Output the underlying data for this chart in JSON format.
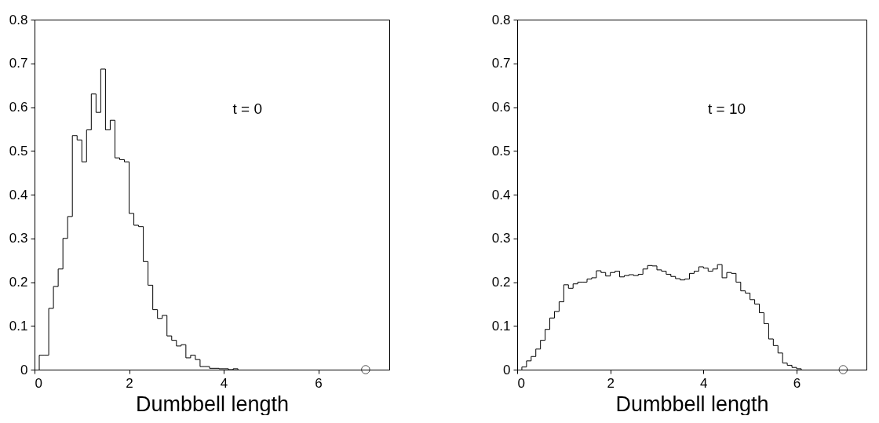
{
  "chart_data": [
    {
      "type": "histogram",
      "xlabel": "Dumbbell length",
      "annotations": [
        "t = 0"
      ],
      "bins": [
        0.1,
        0.2,
        0.3,
        0.4,
        0.5,
        0.6,
        0.7,
        0.8,
        0.9,
        1.0,
        1.1,
        1.2,
        1.3,
        1.4,
        1.5,
        1.6,
        1.7,
        1.8,
        1.9,
        2.0,
        2.1,
        2.2,
        2.3,
        2.4,
        2.5,
        2.6,
        2.7,
        2.8,
        2.9,
        3.0,
        3.1,
        3.2,
        3.3,
        3.4,
        3.5,
        3.6,
        3.7,
        3.8,
        3.9,
        4.0,
        4.1,
        4.2,
        4.3
      ],
      "values": [
        0.033,
        0.033,
        0.14,
        0.19,
        0.23,
        0.3,
        0.35,
        0.535,
        0.525,
        0.475,
        0.548,
        0.63,
        0.588,
        0.687,
        0.548,
        0.57,
        0.484,
        0.48,
        0.475,
        0.357,
        0.33,
        0.327,
        0.247,
        0.193,
        0.137,
        0.117,
        0.124,
        0.077,
        0.067,
        0.054,
        0.057,
        0.027,
        0.033,
        0.023,
        0.007,
        0.007,
        0.003,
        0.003,
        0.002,
        0.002,
        0,
        0.002
      ],
      "color": "#000000",
      "series": [
        {
          "type": "scatter",
          "x": [
            7
          ],
          "values": [
            0
          ],
          "color": "#000000"
        }
      ],
      "marker": "circle",
      "xlim": [
        0,
        7.5
      ],
      "xticks": [
        0,
        2,
        4,
        6
      ],
      "ylim": [
        0,
        0.8
      ],
      "yticks": [
        0,
        0.1,
        0.2,
        0.3,
        0.4,
        0.5,
        0.6,
        0.7,
        0.8
      ],
      "grid": false
    },
    {
      "type": "histogram",
      "xlabel": "Dumbbell length",
      "annotations": [
        "t = 10"
      ],
      "bins": [
        0.1,
        0.2,
        0.3,
        0.4,
        0.5,
        0.6,
        0.7,
        0.8,
        0.9,
        1.0,
        1.1,
        1.2,
        1.3,
        1.4,
        1.5,
        1.6,
        1.7,
        1.8,
        1.9,
        2.0,
        2.1,
        2.2,
        2.3,
        2.4,
        2.5,
        2.6,
        2.7,
        2.8,
        2.9,
        3.0,
        3.1,
        3.2,
        3.3,
        3.4,
        3.5,
        3.6,
        3.7,
        3.8,
        3.9,
        4.0,
        4.1,
        4.2,
        4.3,
        4.4,
        4.5,
        4.6,
        4.7,
        4.8,
        4.9,
        5.0,
        5.1,
        5.2,
        5.3,
        5.4,
        5.5,
        5.6,
        5.7,
        5.8,
        5.9,
        6.0,
        6.1
      ],
      "values": [
        0.006,
        0.02,
        0.03,
        0.047,
        0.067,
        0.092,
        0.118,
        0.133,
        0.155,
        0.194,
        0.186,
        0.196,
        0.2,
        0.2,
        0.207,
        0.21,
        0.226,
        0.222,
        0.214,
        0.222,
        0.225,
        0.212,
        0.215,
        0.217,
        0.215,
        0.218,
        0.23,
        0.238,
        0.237,
        0.228,
        0.225,
        0.218,
        0.213,
        0.208,
        0.205,
        0.207,
        0.22,
        0.225,
        0.235,
        0.232,
        0.225,
        0.23,
        0.24,
        0.21,
        0.222,
        0.22,
        0.2,
        0.18,
        0.175,
        0.16,
        0.15,
        0.13,
        0.105,
        0.07,
        0.055,
        0.038,
        0.015,
        0.01,
        0.005,
        0.002
      ],
      "color": "#000000",
      "series": [
        {
          "type": "scatter",
          "x": [
            7
          ],
          "values": [
            0
          ],
          "color": "#000000"
        }
      ],
      "marker": "circle",
      "xlim": [
        0,
        7.5
      ],
      "xticks": [
        0,
        2,
        4,
        6
      ],
      "ylim": [
        0,
        0.8
      ],
      "yticks": [
        0,
        0.1,
        0.2,
        0.3,
        0.4,
        0.5,
        0.6,
        0.7,
        0.8
      ],
      "grid": false
    }
  ]
}
